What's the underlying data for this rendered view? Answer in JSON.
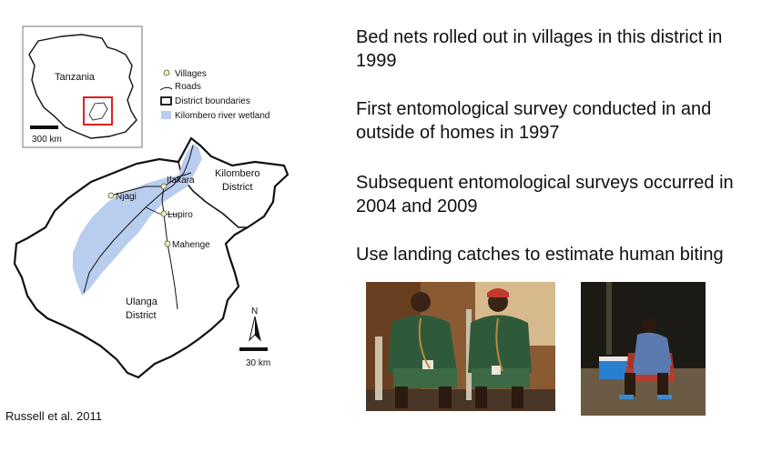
{
  "map": {
    "inset": {
      "country_label": "Tanzania",
      "scale_label": "300 km"
    },
    "legend": {
      "villages": "Villages",
      "roads": "Roads",
      "district_boundaries": "District boundaries",
      "wetland": "Kilombero river wetland"
    },
    "places": {
      "ifakara": "Ifakara",
      "njagi": "Njagi",
      "lupiro": "Lupiro",
      "mahenge": "Mahenge"
    },
    "districts": {
      "kilombero_1": "Kilombero",
      "kilombero_2": "District",
      "ulanga_1": "Ulanga",
      "ulanga_2": "District"
    },
    "north_label": "N",
    "scale_label": "30 km",
    "colors": {
      "wetland": "#b9cdee",
      "village": "#f3efb0",
      "inset_box": "#e02020"
    }
  },
  "bullets": [
    "Bed nets rolled out in villages in this district in 1999",
    "First entomological survey conducted in and outside of homes in 1997",
    "Subsequent entomological surveys occurred in 2004 and 2009",
    "Use landing catches to estimate human biting"
  ],
  "citation": "Russell et al. 2011"
}
